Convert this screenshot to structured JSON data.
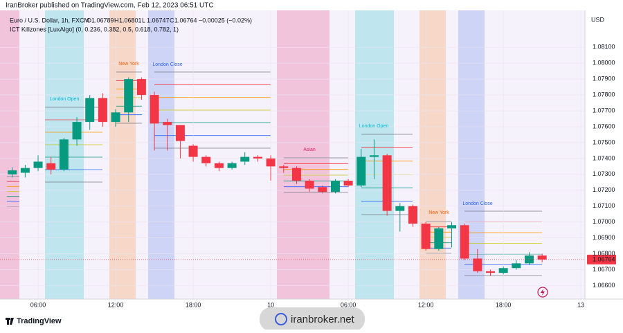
{
  "header": "IranBroker published on TradingView.com, Feb 12, 2023 06:51 UTC",
  "footer": "TradingView",
  "watermark": "iranbroker.net",
  "chart_data": {
    "type": "candlestick",
    "title": "Euro / U.S. Dollar, 1h, FXCM",
    "ohlc_legend": [
      {
        "key": "O",
        "value": 1.06789
      },
      {
        "key": "H",
        "value": 1.06801
      },
      {
        "key": "L",
        "value": 1.06747
      },
      {
        "key": "C",
        "value": 1.06764
      }
    ],
    "change": "−0.00025 (−0.02%)",
    "indicator": "ICT Killzones [LuxAlgo] (0, 0.236, 0.382, 0.5, 0.618, 0.782, 1)",
    "y_axis_label": "USD",
    "last_price": 1.06764,
    "up_color": "#089981",
    "down_color": "#f23645",
    "categories": [
      null,
      null,
      "06:00",
      null,
      null,
      null,
      null,
      null,
      "12:00",
      null,
      null,
      null,
      null,
      null,
      "18:00",
      null,
      null,
      null,
      null,
      null,
      "10",
      null,
      null,
      null,
      null,
      null,
      "06:00",
      null,
      null,
      null,
      null,
      null,
      "12:00",
      null,
      null,
      null,
      null,
      null,
      "18:00",
      null,
      null,
      null,
      null,
      null,
      "13"
    ],
    "open": [
      1.073,
      1.0731,
      1.0734,
      1.0737,
      1.0733,
      1.0752,
      1.0763,
      1.0778,
      1.0763,
      1.0769,
      1.079,
      1.078,
      1.0763,
      1.0761,
      1.0748,
      1.0741,
      1.0737,
      1.0734,
      1.0738,
      1.0741,
      1.074,
      1.0735,
      1.0734,
      1.0726,
      1.0722,
      1.0719,
      1.0726,
      1.0723,
      1.0741,
      1.0742,
      1.0707,
      1.071,
      1.0699,
      1.0683,
      1.0696,
      1.0698,
      1.0677,
      1.0669,
      1.0668,
      1.0671,
      1.0674,
      1.06789,
      null,
      null,
      null
    ],
    "high": [
      1.07345,
      1.0736,
      1.0742,
      1.0741,
      1.0753,
      1.0766,
      1.078,
      1.0781,
      1.0771,
      1.0791,
      1.0791,
      1.0782,
      1.0765,
      1.0761,
      1.0749,
      1.0742,
      1.0738,
      1.0738,
      1.0744,
      1.0742,
      1.0742,
      1.0736,
      1.0735,
      1.0727,
      1.0723,
      1.0727,
      1.0727,
      1.0746,
      1.0752,
      1.0743,
      1.0712,
      1.0711,
      1.07,
      1.0697,
      1.07,
      1.0699,
      1.0683,
      1.067,
      1.0672,
      1.0676,
      1.0681,
      1.06801,
      null,
      null,
      null
    ],
    "low": [
      1.0728,
      1.0728,
      1.0732,
      1.073,
      1.0732,
      1.0748,
      1.0758,
      1.076,
      1.076,
      1.0763,
      1.0777,
      1.0745,
      1.0745,
      1.074,
      1.0738,
      1.0735,
      1.0732,
      1.0733,
      1.0736,
      1.0738,
      1.0726,
      1.0731,
      1.0724,
      1.0719,
      1.0718,
      1.0718,
      1.0722,
      1.0722,
      1.0727,
      1.0704,
      1.0694,
      1.0697,
      1.0682,
      1.0682,
      1.0684,
      1.0676,
      1.0668,
      1.0666,
      1.0667,
      1.067,
      1.0673,
      1.06747,
      null,
      null,
      null
    ],
    "close": [
      1.07325,
      1.0734,
      1.0738,
      1.0733,
      1.0752,
      1.0763,
      1.0778,
      1.0763,
      1.0769,
      1.079,
      1.078,
      1.0762,
      1.0761,
      1.0751,
      1.0741,
      1.0737,
      1.0734,
      1.0737,
      1.0741,
      1.074,
      1.0735,
      1.0734,
      1.0726,
      1.0721,
      1.0719,
      1.0726,
      1.0723,
      1.0741,
      1.0742,
      1.0707,
      1.071,
      1.0699,
      1.0683,
      1.0696,
      1.0698,
      1.0677,
      1.0669,
      1.0668,
      1.0671,
      1.0674,
      1.06789,
      1.06764,
      null,
      null,
      null
    ],
    "zones": [
      {
        "label": "London Open",
        "color": "#00bcd4"
      },
      {
        "label": "New York",
        "color": "#ff5d00"
      },
      {
        "label": "London Close",
        "color": "#2962ff"
      },
      {
        "label": "Asian",
        "color": "#e91e63"
      },
      {
        "label": "London Open",
        "color": "#00bcd4"
      },
      {
        "label": "New York",
        "color": "#ff5d00"
      },
      {
        "label": "London Close",
        "color": "#2962ff"
      }
    ],
    "ylim": [
      1.06515,
      1.08332
    ],
    "yticks": [
      {
        "value": 1.081,
        "label": "1.08100"
      },
      {
        "value": 1.08,
        "label": "1.08000"
      },
      {
        "value": 1.079,
        "label": "1.07900"
      },
      {
        "value": 1.078,
        "label": "1.07800"
      },
      {
        "value": 1.077,
        "label": "1.07700"
      },
      {
        "value": 1.076,
        "label": "1.07600"
      },
      {
        "value": 1.075,
        "label": "1.07500"
      },
      {
        "value": 1.074,
        "label": "1.07400"
      },
      {
        "value": 1.073,
        "label": "1.07300"
      },
      {
        "value": 1.072,
        "label": "1.07200"
      },
      {
        "value": 1.071,
        "label": "1.07100"
      },
      {
        "value": 1.07,
        "label": "1.07000"
      },
      {
        "value": 1.069,
        "label": "1.06900"
      },
      {
        "value": 1.068,
        "label": "1.06800"
      },
      {
        "value": 1.067,
        "label": "1.06700"
      },
      {
        "value": 1.066,
        "label": "1.06600"
      }
    ],
    "grid": true
  }
}
